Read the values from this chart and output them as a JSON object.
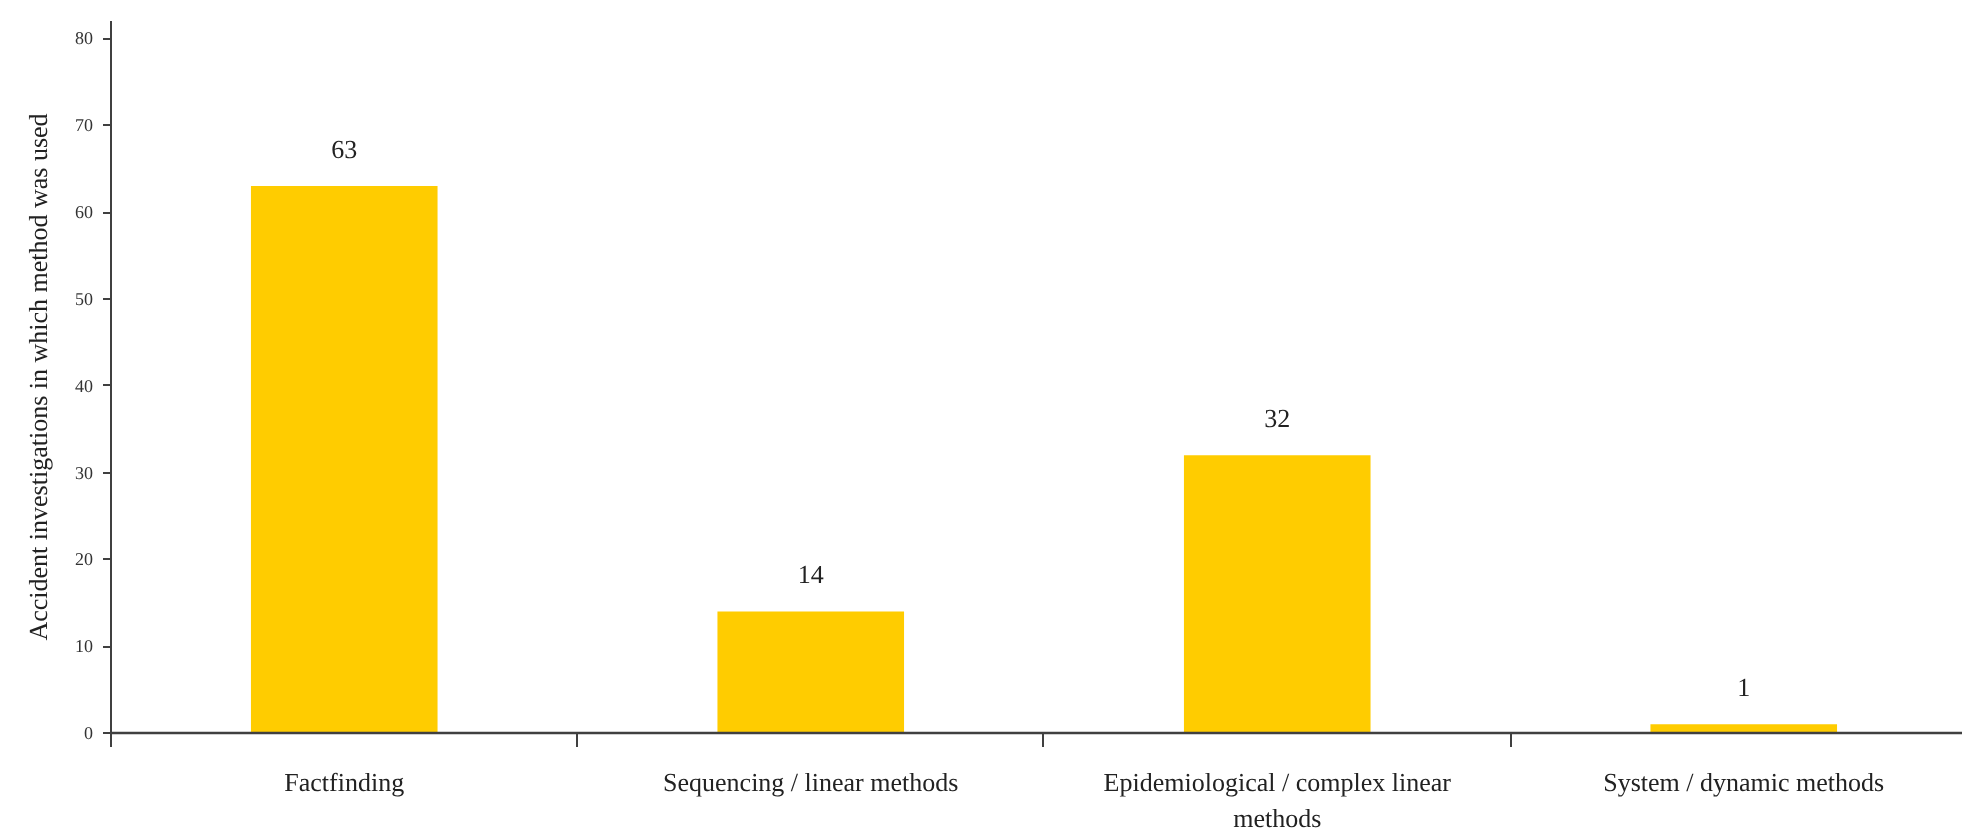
{
  "chart_data": {
    "type": "bar",
    "ylabel": "Accident investigations in which method was used",
    "categories": [
      "Factfinding",
      "Sequencing / linear methods",
      "Epidemiological / complex linear methods",
      "System / dynamic methods"
    ],
    "values": [
      63,
      14,
      32,
      1
    ],
    "color": "#ffcc00",
    "ylim": [
      0,
      82
    ],
    "yticks": [
      0,
      10,
      20,
      30,
      40,
      50,
      60,
      70,
      80
    ],
    "data_labels": true,
    "grid": false
  }
}
